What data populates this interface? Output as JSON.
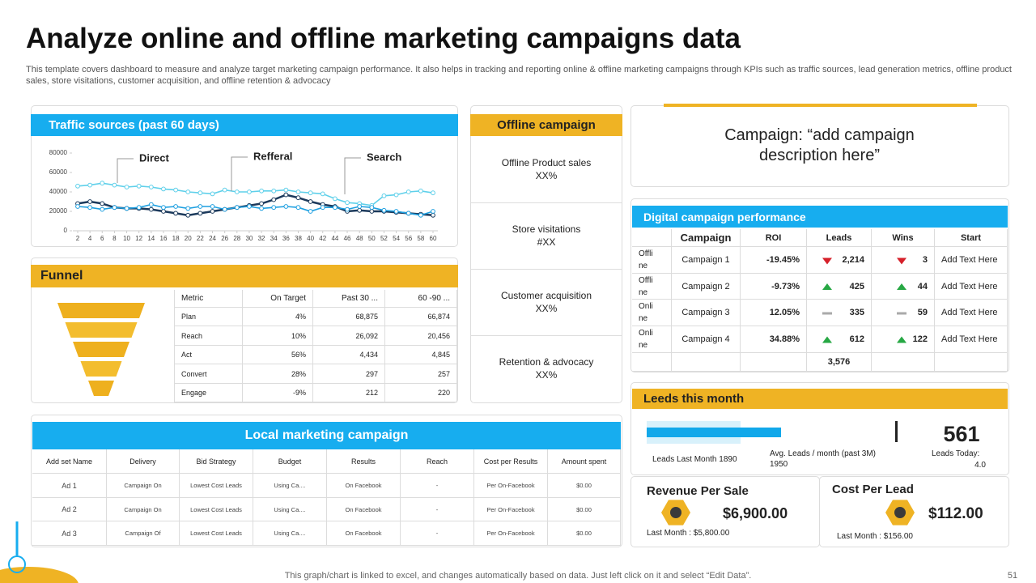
{
  "header": {
    "title": "Analyze online and offline marketing campaigns data",
    "subtitle": "This template covers dashboard to measure and analyze target marketing campaign performance. It also helps in tracking and reporting online & offline marketing campaigns through KPIs such as traffic sources, lead generation metrics, offline product sales, store visitations, customer acquisition, and offline retention & advocacy"
  },
  "traffic": {
    "title": "Traffic sources (past 60 days)"
  },
  "chart_data": {
    "type": "line",
    "x": [
      2,
      4,
      6,
      8,
      10,
      12,
      14,
      16,
      18,
      20,
      22,
      24,
      26,
      28,
      30,
      32,
      34,
      36,
      38,
      40,
      42,
      44,
      46,
      48,
      50,
      52,
      54,
      56,
      58,
      60
    ],
    "xlim": [
      2,
      60
    ],
    "xticks": [
      2,
      4,
      6,
      8,
      10,
      12,
      14,
      16,
      18,
      20,
      22,
      24,
      26,
      28,
      30,
      32,
      34,
      36,
      38,
      40,
      42,
      44,
      46,
      48,
      50,
      52,
      54,
      56,
      58,
      60
    ],
    "ylim": [
      0,
      80000
    ],
    "yticks": [
      0,
      20000,
      40000,
      60000,
      80000
    ],
    "series": [
      {
        "name": "Direct",
        "color": "#5fd0ea",
        "values": [
          46000,
          47000,
          49000,
          47000,
          45000,
          46000,
          45000,
          43000,
          42000,
          40000,
          39000,
          38000,
          42000,
          40000,
          40000,
          41000,
          41000,
          42000,
          40000,
          39000,
          38000,
          33000,
          29000,
          28000,
          26000,
          36000,
          37000,
          40000,
          41000,
          39000
        ]
      },
      {
        "name": "Refferal",
        "color": "#1c3a5c",
        "values": [
          28000,
          30000,
          28000,
          24000,
          23000,
          23000,
          22000,
          20000,
          18000,
          16000,
          18000,
          20000,
          22000,
          24000,
          26000,
          28000,
          32000,
          37000,
          34000,
          30000,
          27000,
          25000,
          20000,
          21000,
          20000,
          20000,
          19000,
          18000,
          17000,
          16000
        ]
      },
      {
        "name": "Search",
        "color": "#1d9fe0",
        "values": [
          25000,
          24000,
          22000,
          24000,
          23000,
          24000,
          27000,
          24000,
          25000,
          23000,
          25000,
          25000,
          22000,
          24000,
          25000,
          23000,
          24000,
          25000,
          24000,
          20000,
          24000,
          24000,
          22000,
          25000,
          24000,
          21000,
          20000,
          18000,
          16000,
          20000
        ]
      }
    ]
  },
  "funnel": {
    "title": "Funnel",
    "columns": [
      "Metric",
      "On Target",
      "Past 30 ...",
      "60 -90 ..."
    ],
    "rows": [
      [
        "Plan",
        "4%",
        "68,875",
        "66,874"
      ],
      [
        "Reach",
        "10%",
        "26,092",
        "20,456"
      ],
      [
        "Act",
        "56%",
        "4,434",
        "4,845"
      ],
      [
        "Convert",
        "28%",
        "297",
        "257"
      ],
      [
        "Engage",
        "-9%",
        "212",
        "220"
      ]
    ]
  },
  "offline": {
    "title": "Offline campaign",
    "items": [
      {
        "label": "Offline Product sales",
        "value": "XX%"
      },
      {
        "label": "Store visitations",
        "value": "#XX"
      },
      {
        "label": "Customer acquisition",
        "value": "XX%"
      },
      {
        "label": "Retention & advocacy",
        "value": "XX%"
      }
    ]
  },
  "campaign_note": {
    "text": "Campaign: “add campaign description here”"
  },
  "digital": {
    "title": "Digital campaign performance",
    "columns": [
      "Campaign",
      "ROI",
      "Leads",
      "Wins",
      "Start"
    ],
    "rows": [
      {
        "type": "Offline",
        "campaign": "Campaign 1",
        "roi": "-19.45%",
        "leads": "2,214",
        "wins": "3",
        "start": "Add Text Here"
      },
      {
        "type": "Offline",
        "campaign": "Campaign 2",
        "roi": "-9.73%",
        "leads": "425",
        "wins": "44",
        "start": "Add Text Here"
      },
      {
        "type": "Online",
        "campaign": "Campaign 3",
        "roi": "12.05%",
        "leads": "335",
        "wins": "59",
        "start": "Add Text Here"
      },
      {
        "type": "Online",
        "campaign": "Campaign 4",
        "roi": "34.88%",
        "leads": "612",
        "wins": "122",
        "start": "Add Text Here"
      }
    ],
    "total_leads": "3,576"
  },
  "leads": {
    "title": "Leeds this month",
    "last_month": "Leads Last Month 1890",
    "avg": "Avg. Leads / month (past 3M) 1950",
    "count": "561",
    "today_label": "Leads Today:",
    "today": "4.0"
  },
  "revenue": {
    "title": "Revenue Per Sale",
    "value": "$6,900.00",
    "last_month": "Last Month : $5,800.00"
  },
  "cost": {
    "title": "Cost Per Lead",
    "value": "$112.00",
    "last_month": "Last Month : $156.00"
  },
  "local": {
    "title": "Local marketing campaign",
    "columns": [
      "Add set Name",
      "Delivery",
      "Bid Strategy",
      "Budget",
      "Results",
      "Reach",
      "Cost per Results",
      "Amount spent"
    ],
    "rows": [
      [
        "Ad 1",
        "Campaign On",
        "Lowest Cost Leads",
        "Using Ca....",
        "On Facebook",
        "-",
        "Per On-Facebook",
        "$0.00"
      ],
      [
        "Ad 2",
        "Campaign On",
        "Lowest Cost Leads",
        "Using Ca....",
        "On Facebook",
        "-",
        "Per On-Facebook",
        "$0.00"
      ],
      [
        "Ad 3",
        "Campaign Of",
        "Lowest Cost Leads",
        "Using Ca....",
        "On Facebook",
        "-",
        "Per On-Facebook",
        "$0.00"
      ]
    ]
  },
  "footer": {
    "note": "This graph/chart is linked to excel,  and changes automatically based on data. Just left click on it and select “Edit Data”.",
    "page": "51"
  }
}
